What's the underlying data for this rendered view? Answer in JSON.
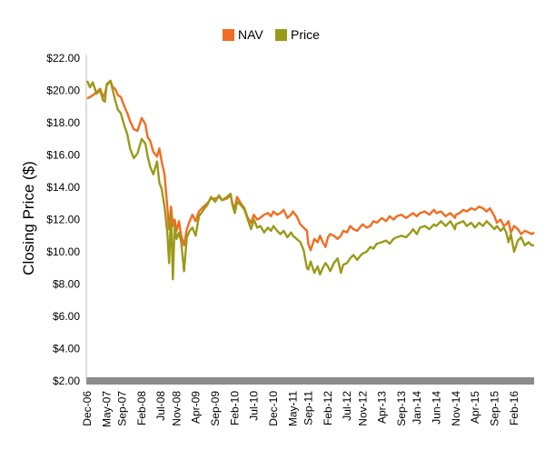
{
  "chart_data": {
    "type": "line",
    "ylabel": "Closing Price ($)",
    "ylim": [
      2,
      22
    ],
    "yticks": [
      "$22.00",
      "$20.00",
      "$18.00",
      "$16.00",
      "$14.00",
      "$12.00",
      "$10.00",
      "$8.00",
      "$6.00",
      "$4.00",
      "$2.00"
    ],
    "ytick_values": [
      22,
      20,
      18,
      16,
      14,
      12,
      10,
      8,
      6,
      4,
      2
    ],
    "xlim": [
      0,
      9.6
    ],
    "xticks": [
      "Dec-06",
      "May-07",
      "Sep-07",
      "Feb-08",
      "Jul-08",
      "Nov-08",
      "Apr-09",
      "Sep-09",
      "Feb-10",
      "Jul-10",
      "Dec-10",
      "May-11",
      "Sep-11",
      "Feb-12",
      "Jul-12",
      "Nov-12",
      "Apr-13",
      "Sep-13",
      "Jan-14",
      "Jun-14",
      "Nov-14",
      "Apr-15",
      "Sep-15",
      "Feb-16"
    ],
    "xtick_positions": [
      0,
      0.42,
      0.75,
      1.17,
      1.58,
      1.92,
      2.33,
      2.75,
      3.17,
      3.58,
      4.0,
      4.42,
      4.75,
      5.17,
      5.58,
      5.92,
      6.33,
      6.75,
      7.08,
      7.5,
      7.92,
      8.33,
      8.75,
      9.17
    ],
    "legend": {
      "position": "top-center"
    },
    "grid": false,
    "series": [
      {
        "name": "NAV",
        "color": "#f26d21",
        "x": [
          0.0,
          0.06,
          0.12,
          0.2,
          0.28,
          0.34,
          0.38,
          0.42,
          0.5,
          0.55,
          0.6,
          0.66,
          0.72,
          0.8,
          0.86,
          0.92,
          1.0,
          1.08,
          1.17,
          1.25,
          1.3,
          1.35,
          1.42,
          1.5,
          1.55,
          1.6,
          1.66,
          1.72,
          1.76,
          1.8,
          1.84,
          1.88,
          1.92,
          1.97,
          2.02,
          2.08,
          2.14,
          2.2,
          2.26,
          2.33,
          2.4,
          2.5,
          2.58,
          2.66,
          2.75,
          2.83,
          2.9,
          3.0,
          3.08,
          3.12,
          3.17,
          3.22,
          3.3,
          3.38,
          3.45,
          3.52,
          3.58,
          3.65,
          3.72,
          3.8,
          3.88,
          3.95,
          4.0,
          4.08,
          4.15,
          4.22,
          4.3,
          4.38,
          4.42,
          4.5,
          4.58,
          4.65,
          4.72,
          4.75,
          4.8,
          4.88,
          4.95,
          5.0,
          5.06,
          5.12,
          5.17,
          5.22,
          5.3,
          5.38,
          5.45,
          5.5,
          5.58,
          5.65,
          5.72,
          5.8,
          5.88,
          5.92,
          6.0,
          6.08,
          6.15,
          6.22,
          6.33,
          6.42,
          6.5,
          6.58,
          6.65,
          6.75,
          6.85,
          6.95,
          7.0,
          7.08,
          7.15,
          7.25,
          7.35,
          7.45,
          7.5,
          7.6,
          7.7,
          7.8,
          7.9,
          7.92,
          8.0,
          8.08,
          8.15,
          8.25,
          8.33,
          8.42,
          8.5,
          8.58,
          8.65,
          8.75,
          8.8,
          8.88,
          8.95,
          9.0,
          9.05,
          9.1,
          9.17,
          9.25,
          9.32,
          9.4,
          9.48,
          9.55,
          9.6
        ],
        "values": [
          19.5,
          19.6,
          19.7,
          19.9,
          20.1,
          19.6,
          19.8,
          20.3,
          20.6,
          20.2,
          20.1,
          19.7,
          19.6,
          19.0,
          18.6,
          18.1,
          17.6,
          17.5,
          18.3,
          17.9,
          17.1,
          16.9,
          16.2,
          15.9,
          16.4,
          15.6,
          14.8,
          12.8,
          11.4,
          12.8,
          11.6,
          12.0,
          11.3,
          11.9,
          11.0,
          10.4,
          11.4,
          11.9,
          12.3,
          11.9,
          12.5,
          12.8,
          13.0,
          13.3,
          13.3,
          13.4,
          13.2,
          13.3,
          13.5,
          13.0,
          12.7,
          13.4,
          13.0,
          12.7,
          12.1,
          11.8,
          12.3,
          12.0,
          12.1,
          12.3,
          12.4,
          12.2,
          12.5,
          12.3,
          12.4,
          12.6,
          12.1,
          12.3,
          12.5,
          12.2,
          11.7,
          11.5,
          11.3,
          10.5,
          10.1,
          10.8,
          10.6,
          11.0,
          10.6,
          10.3,
          10.9,
          11.1,
          11.0,
          10.8,
          11.0,
          11.3,
          11.2,
          11.6,
          11.4,
          11.3,
          11.6,
          11.7,
          11.5,
          11.6,
          11.9,
          11.8,
          12.1,
          11.9,
          12.2,
          12.0,
          12.2,
          12.3,
          12.1,
          12.3,
          12.4,
          12.2,
          12.4,
          12.5,
          12.3,
          12.6,
          12.4,
          12.5,
          12.2,
          12.4,
          12.1,
          12.3,
          12.4,
          12.6,
          12.5,
          12.7,
          12.6,
          12.8,
          12.7,
          12.5,
          12.7,
          12.2,
          11.8,
          12.0,
          11.6,
          11.7,
          11.9,
          11.2,
          11.6,
          11.4,
          11.1,
          11.3,
          11.2,
          11.1,
          11.2
        ]
      },
      {
        "name": "Price",
        "color": "#9a9a1a",
        "x": [
          0.0,
          0.06,
          0.12,
          0.2,
          0.28,
          0.34,
          0.38,
          0.42,
          0.5,
          0.55,
          0.6,
          0.66,
          0.72,
          0.8,
          0.86,
          0.92,
          1.0,
          1.08,
          1.17,
          1.25,
          1.3,
          1.35,
          1.42,
          1.5,
          1.55,
          1.6,
          1.66,
          1.72,
          1.76,
          1.8,
          1.84,
          1.88,
          1.92,
          1.97,
          2.02,
          2.08,
          2.14,
          2.2,
          2.26,
          2.33,
          2.4,
          2.5,
          2.58,
          2.66,
          2.75,
          2.83,
          2.9,
          3.0,
          3.08,
          3.12,
          3.17,
          3.22,
          3.3,
          3.38,
          3.45,
          3.52,
          3.58,
          3.65,
          3.72,
          3.8,
          3.88,
          3.95,
          4.0,
          4.08,
          4.15,
          4.22,
          4.3,
          4.38,
          4.42,
          4.5,
          4.58,
          4.65,
          4.72,
          4.75,
          4.8,
          4.88,
          4.95,
          5.0,
          5.06,
          5.12,
          5.17,
          5.22,
          5.3,
          5.38,
          5.45,
          5.5,
          5.58,
          5.65,
          5.72,
          5.8,
          5.88,
          5.92,
          6.0,
          6.08,
          6.15,
          6.22,
          6.33,
          6.42,
          6.5,
          6.58,
          6.65,
          6.75,
          6.85,
          6.95,
          7.0,
          7.08,
          7.15,
          7.25,
          7.35,
          7.45,
          7.5,
          7.6,
          7.7,
          7.8,
          7.9,
          7.92,
          8.0,
          8.08,
          8.15,
          8.25,
          8.33,
          8.42,
          8.5,
          8.58,
          8.65,
          8.75,
          8.8,
          8.88,
          8.95,
          9.0,
          9.05,
          9.1,
          9.17,
          9.25,
          9.32,
          9.4,
          9.48,
          9.55,
          9.6
        ],
        "values": [
          20.6,
          20.2,
          20.5,
          19.8,
          20.0,
          19.4,
          19.3,
          20.4,
          20.6,
          20.0,
          19.4,
          18.8,
          18.6,
          17.8,
          17.3,
          16.4,
          15.8,
          16.1,
          17.0,
          16.7,
          15.9,
          15.3,
          14.8,
          15.6,
          14.3,
          13.9,
          12.8,
          11.2,
          9.3,
          12.4,
          8.3,
          11.6,
          10.8,
          11.2,
          10.6,
          8.8,
          10.9,
          11.3,
          11.5,
          11.0,
          12.2,
          12.6,
          12.9,
          13.4,
          13.1,
          13.5,
          13.2,
          13.4,
          13.6,
          12.9,
          12.4,
          13.1,
          12.9,
          12.6,
          12.0,
          11.4,
          12.0,
          11.5,
          11.6,
          11.2,
          11.5,
          11.3,
          11.6,
          11.3,
          11.1,
          11.3,
          10.9,
          11.2,
          11.0,
          10.8,
          10.6,
          10.1,
          9.0,
          8.9,
          9.4,
          8.7,
          9.1,
          8.6,
          9.0,
          9.3,
          9.1,
          8.8,
          9.3,
          9.6,
          8.7,
          9.2,
          9.3,
          9.6,
          9.8,
          9.5,
          9.8,
          9.9,
          10.0,
          10.3,
          10.2,
          10.5,
          10.6,
          10.7,
          10.5,
          10.8,
          10.9,
          11.0,
          10.9,
          11.2,
          11.4,
          11.1,
          11.5,
          11.6,
          11.4,
          11.7,
          11.6,
          11.9,
          11.6,
          11.9,
          11.4,
          11.7,
          11.8,
          11.9,
          11.6,
          11.8,
          11.5,
          11.8,
          11.6,
          11.9,
          11.7,
          11.4,
          11.6,
          11.3,
          11.5,
          11.2,
          10.6,
          11.1,
          10.0,
          10.7,
          10.9,
          10.4,
          10.6,
          10.4,
          10.4
        ]
      }
    ]
  }
}
